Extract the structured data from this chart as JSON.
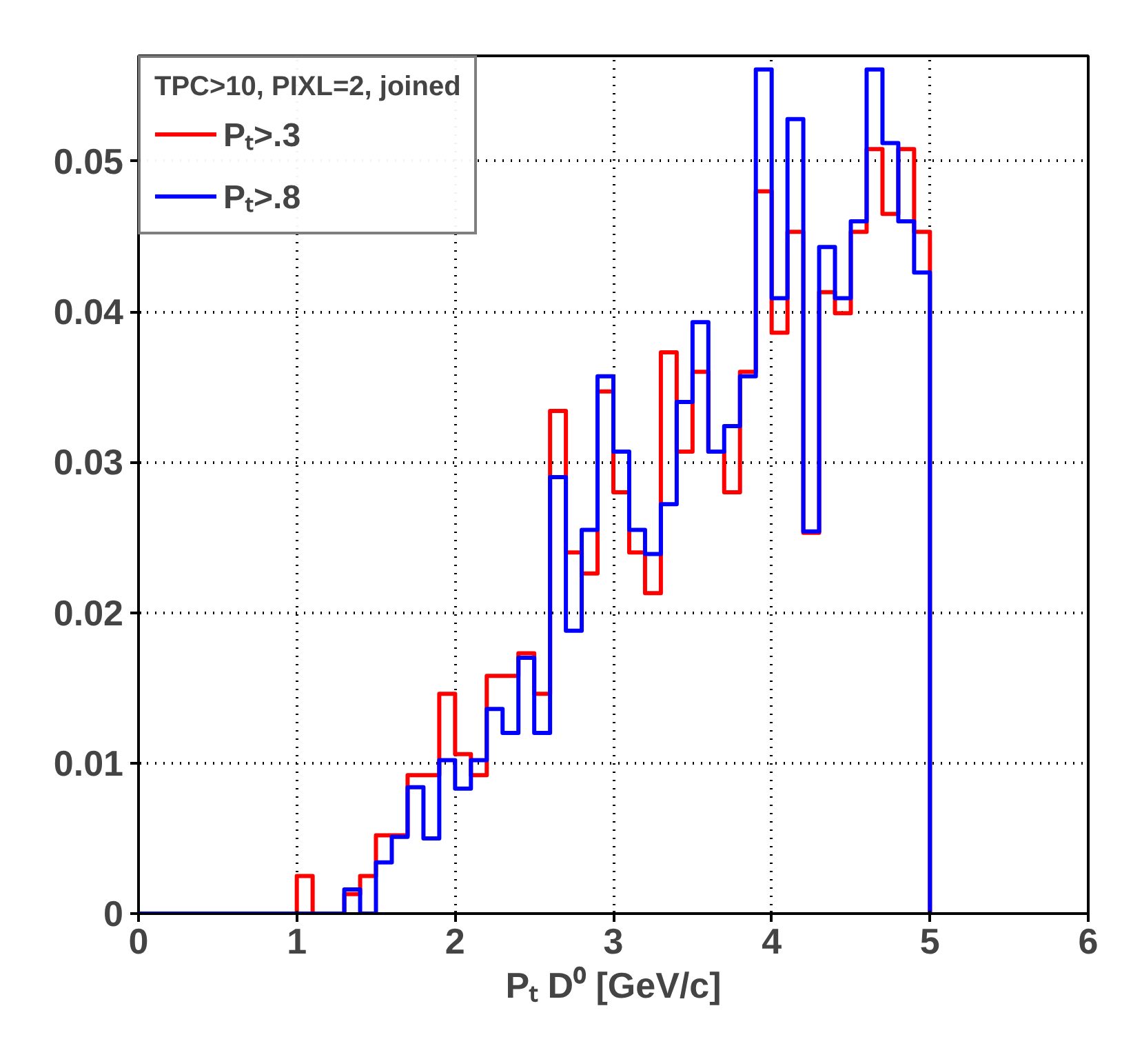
{
  "chart_data": {
    "type": "histogram",
    "xlabel": "Pₜ D⁰ [GeV/c]",
    "legend_title": "TPC>10, PIXL=2, joined",
    "bins": [
      0,
      0.1,
      0.2,
      0.3,
      0.4,
      0.5,
      0.6,
      0.7,
      0.8,
      0.9,
      1.0,
      1.1,
      1.2,
      1.3,
      1.4,
      1.5,
      1.6,
      1.7,
      1.8,
      1.9,
      2.0,
      2.1,
      2.2,
      2.3,
      2.4,
      2.5,
      2.6,
      2.7,
      2.8,
      2.9,
      3.0,
      3.1,
      3.2,
      3.3,
      3.4,
      3.5,
      3.6,
      3.7,
      3.8,
      3.9,
      4.0,
      4.1,
      4.2,
      4.3,
      4.4,
      4.5,
      4.6,
      4.7,
      4.8,
      4.9,
      5.0
    ],
    "series": [
      {
        "name": "Pₜ>.3",
        "color": "#ff0000",
        "values": [
          0,
          0,
          0,
          0,
          0,
          0,
          0,
          0,
          0,
          0,
          0.0025,
          0,
          0,
          0.0013,
          0.0025,
          0.0052,
          0.0052,
          0.0092,
          0.0092,
          0.0146,
          0.0106,
          0.0092,
          0.0158,
          0.0158,
          0.0173,
          0.0146,
          0.0334,
          0.024,
          0.0226,
          0.0347,
          0.028,
          0.024,
          0.0213,
          0.0373,
          0.0307,
          0.036,
          0.0307,
          0.028,
          0.036,
          0.048,
          0.0386,
          0.0453,
          0.0253,
          0.0413,
          0.0399,
          0.0453,
          0.0508,
          0.0465,
          0.0508,
          0.0453
        ]
      },
      {
        "name": "Pₜ>.8",
        "color": "#0000ff",
        "values": [
          0,
          0,
          0,
          0,
          0,
          0,
          0,
          0,
          0,
          0,
          0,
          0,
          0,
          0.0016,
          0,
          0.0034,
          0.0051,
          0.0084,
          0.005,
          0.0102,
          0.0083,
          0.0102,
          0.0136,
          0.012,
          0.017,
          0.012,
          0.029,
          0.0188,
          0.0255,
          0.0357,
          0.0307,
          0.0255,
          0.0239,
          0.0272,
          0.034,
          0.0393,
          0.0307,
          0.0324,
          0.0357,
          0.0561,
          0.0409,
          0.0528,
          0.0254,
          0.0443,
          0.0409,
          0.046,
          0.0561,
          0.0512,
          0.046,
          0.0426
        ]
      }
    ],
    "xlim": [
      0,
      6
    ],
    "xticks": [
      0,
      1,
      2,
      3,
      4,
      5,
      6
    ],
    "ylim": [
      0,
      0.057
    ],
    "yticks": [
      0,
      0.01,
      0.02,
      0.03,
      0.04,
      0.05
    ],
    "grid": true,
    "legend": "top left",
    "line_style": "solid"
  }
}
